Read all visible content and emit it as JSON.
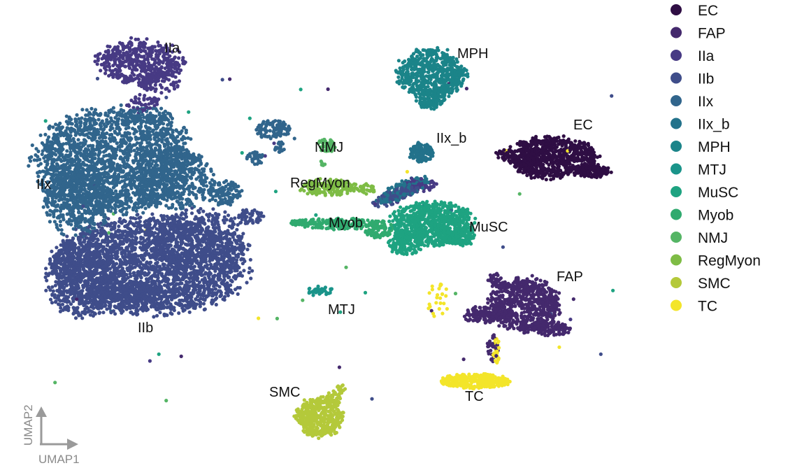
{
  "chart_data": {
    "type": "scatter",
    "title": "",
    "xlabel": "UMAP1",
    "ylabel": "UMAP2",
    "grid": false,
    "legend_placement": "right",
    "point_size_hint": "small",
    "axes_style": "arrow-corner",
    "categories": [
      "EC",
      "FAP",
      "IIa",
      "IIb",
      "IIx",
      "IIx_b",
      "MPH",
      "MTJ",
      "MuSC",
      "Myob",
      "NMJ",
      "RegMyon",
      "SMC",
      "TC"
    ],
    "colors": [
      "#2f0e44",
      "#44296d",
      "#473a84",
      "#3f4d8a",
      "#31658c",
      "#23728b",
      "#1b8489",
      "#1a948a",
      "#1ea381",
      "#30aa6f",
      "#55b565",
      "#7ebc45",
      "#b4c93a",
      "#f3e52a"
    ],
    "cluster_labels": [
      "EC",
      "FAP",
      "IIa",
      "IIb",
      "IIx",
      "IIx_b",
      "MPH",
      "MTJ",
      "MuSC",
      "Myob",
      "NMJ",
      "RegMyon",
      "SMC",
      "TC"
    ]
  },
  "axis_color": "#9a9a9a"
}
